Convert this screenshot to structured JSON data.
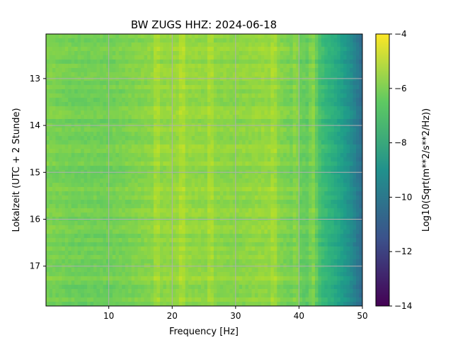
{
  "chart_data": {
    "type": "heatmap",
    "title": "BW ZUGS  HHZ: 2024-06-18",
    "xlabel": "Frequency [Hz]",
    "ylabel": "Lokalzeit (UTC + 2 Stunde)",
    "xlim": [
      0.1,
      50
    ],
    "ylim": [
      12.05,
      17.85
    ],
    "x_ticks": [
      10,
      20,
      30,
      40,
      50
    ],
    "x_tick_labels": [
      "10",
      "20",
      "30",
      "40",
      "50"
    ],
    "y_ticks": [
      13,
      14,
      15,
      16,
      17
    ],
    "y_tick_labels": [
      "13",
      "14",
      "15",
      "16",
      "17"
    ],
    "y_axis_inverted": true,
    "grid": true,
    "colormap": "viridis",
    "colorbar": {
      "label": "Log10(Sqrt(m**2/s**2/Hz))",
      "range": [
        -14,
        -4
      ],
      "ticks": [
        -4,
        -6,
        -8,
        -10,
        -12,
        -14
      ],
      "tick_labels": [
        "−4",
        "−6",
        "−8",
        "−10",
        "−12",
        "−14"
      ]
    },
    "spectral_profile": {
      "description": "approximate power level vs frequency",
      "freq_hz": [
        0,
        5,
        10,
        15,
        20,
        25,
        30,
        35,
        40,
        42,
        44,
        46,
        48,
        50
      ],
      "level": [
        -6.0,
        -6.2,
        -6.2,
        -5.9,
        -5.6,
        -5.7,
        -5.8,
        -5.6,
        -6.3,
        -6.5,
        -7.3,
        -8.0,
        -9.0,
        -10.5
      ]
    },
    "spectral_lines_hz": [
      17.5,
      18.0,
      21.5,
      22.0,
      26.0,
      36.0,
      39.5,
      42.0,
      42.5
    ]
  }
}
